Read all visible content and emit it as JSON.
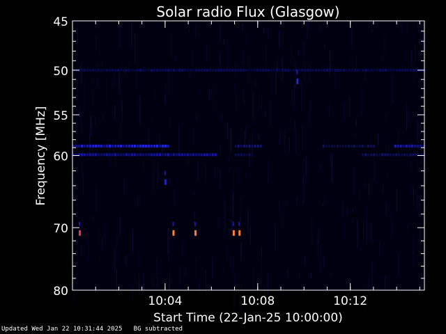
{
  "chart_data": {
    "type": "heatmap",
    "title": "Solar radio Flux (Glasgow)",
    "xlabel": "Start Time (22-Jan-25 10:00:00)",
    "ylabel": "Frequency [MHz]",
    "x_range_minutes": [
      0,
      15.2
    ],
    "y_range_mhz": [
      45,
      80
    ],
    "y_scale": "log",
    "y_inverted": true,
    "x_ticks": [
      {
        "label": "10:04",
        "minute": 4
      },
      {
        "label": "10:08",
        "minute": 8
      },
      {
        "label": "10:12",
        "minute": 12
      }
    ],
    "y_ticks": [
      45,
      50,
      55,
      60,
      70,
      80
    ],
    "background_color": "#000010",
    "features": [
      {
        "kind": "band",
        "freq_mhz": 50.0,
        "t_start": 0.0,
        "t_end": 15.2,
        "color": "#1a1aa0",
        "intensity": 0.5
      },
      {
        "kind": "band",
        "freq_mhz": 58.8,
        "t_start": 0.0,
        "t_end": 4.2,
        "color": "#2a2aff",
        "intensity": 0.9
      },
      {
        "kind": "band",
        "freq_mhz": 58.8,
        "t_start": 7.0,
        "t_end": 8.2,
        "color": "#2020d0",
        "intensity": 0.6
      },
      {
        "kind": "band",
        "freq_mhz": 58.8,
        "t_start": 10.8,
        "t_end": 13.0,
        "color": "#2020c0",
        "intensity": 0.5
      },
      {
        "kind": "band",
        "freq_mhz": 58.8,
        "t_start": 13.9,
        "t_end": 15.2,
        "color": "#2a2aff",
        "intensity": 0.7
      },
      {
        "kind": "band",
        "freq_mhz": 59.9,
        "t_start": 0.0,
        "t_end": 6.2,
        "color": "#2424e0",
        "intensity": 0.7
      },
      {
        "kind": "band",
        "freq_mhz": 59.9,
        "t_start": 7.0,
        "t_end": 7.8,
        "color": "#1c1cb0",
        "intensity": 0.5
      },
      {
        "kind": "band",
        "freq_mhz": 59.9,
        "t_start": 12.5,
        "t_end": 15.2,
        "color": "#2020d0",
        "intensity": 0.6
      },
      {
        "kind": "spot",
        "freq_mhz": 70.8,
        "t": 0.3,
        "color": "#ff2a50",
        "intensity": 1.0
      },
      {
        "kind": "spot",
        "freq_mhz": 70.8,
        "t": 4.35,
        "color": "#ff8030",
        "intensity": 1.0
      },
      {
        "kind": "spot",
        "freq_mhz": 70.8,
        "t": 5.3,
        "color": "#ff8030",
        "intensity": 1.0
      },
      {
        "kind": "spot",
        "freq_mhz": 70.8,
        "t": 6.95,
        "color": "#ff8030",
        "intensity": 1.0
      },
      {
        "kind": "spot",
        "freq_mhz": 70.8,
        "t": 7.2,
        "color": "#ff8030",
        "intensity": 1.0
      },
      {
        "kind": "spot",
        "freq_mhz": 51.2,
        "t": 9.7,
        "color": "#3030ff",
        "intensity": 0.8
      },
      {
        "kind": "spot",
        "freq_mhz": 63.5,
        "t": 4.0,
        "color": "#3030ff",
        "intensity": 0.7
      }
    ]
  },
  "footer": {
    "text": "Updated Wed Jan 22 10:31:44 2025   BG subtracted"
  }
}
